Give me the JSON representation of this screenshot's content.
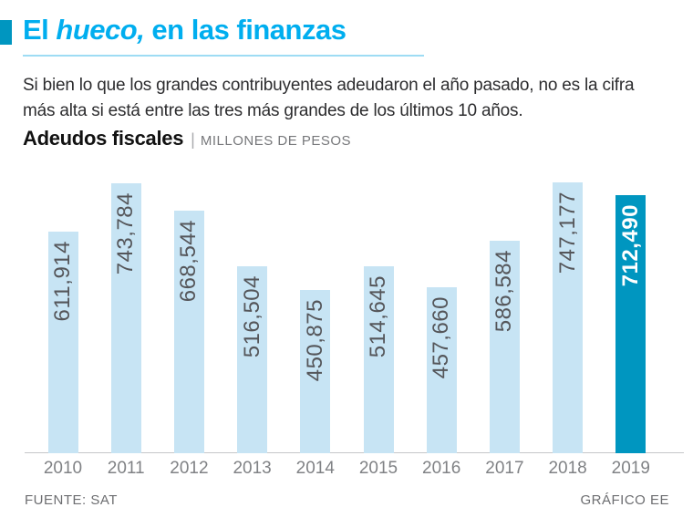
{
  "header": {
    "title_prefix": "El ",
    "title_italic": "hueco,",
    "title_suffix": " en las finanzas",
    "subtitle": "Si bien lo que los grandes contribuyentes adeudaron el año pasado, no es la cifra más alta si está entre las tres más grandes de los últimos 10 años.",
    "chart_label": "Adeudos fiscales",
    "separator": "|",
    "chart_unit": "MILLONES DE PESOS"
  },
  "footer": {
    "source": "FUENTE: SAT",
    "credit": "GRÁFICO EE"
  },
  "colors": {
    "title_cyan": "#00aeef",
    "accent_teal": "#0096c0",
    "bar_light_blue": "#c7e4f4",
    "bar_highlight_teal": "#0096c0",
    "value_label_gray": "#55565a",
    "highlight_label_white": "#ffffff"
  },
  "chart_data": {
    "type": "bar",
    "title": "Adeudos fiscales",
    "unit": "MILLONES DE PESOS",
    "categories": [
      "2010",
      "2011",
      "2012",
      "2013",
      "2014",
      "2015",
      "2016",
      "2017",
      "2018",
      "2019"
    ],
    "values": [
      611914,
      743784,
      668544,
      516504,
      450875,
      514645,
      457660,
      586584,
      747177,
      712490
    ],
    "value_labels": [
      "611,914",
      "743,784",
      "668,544",
      "516,504",
      "450,875",
      "514,645",
      "457,660",
      "586,584",
      "747,177",
      "712,490"
    ],
    "highlight_index": 9,
    "ylim": [
      0,
      747177
    ],
    "grid": false,
    "legend": false,
    "bar_color": "#c7e4f4",
    "highlight_color": "#0096c0"
  }
}
